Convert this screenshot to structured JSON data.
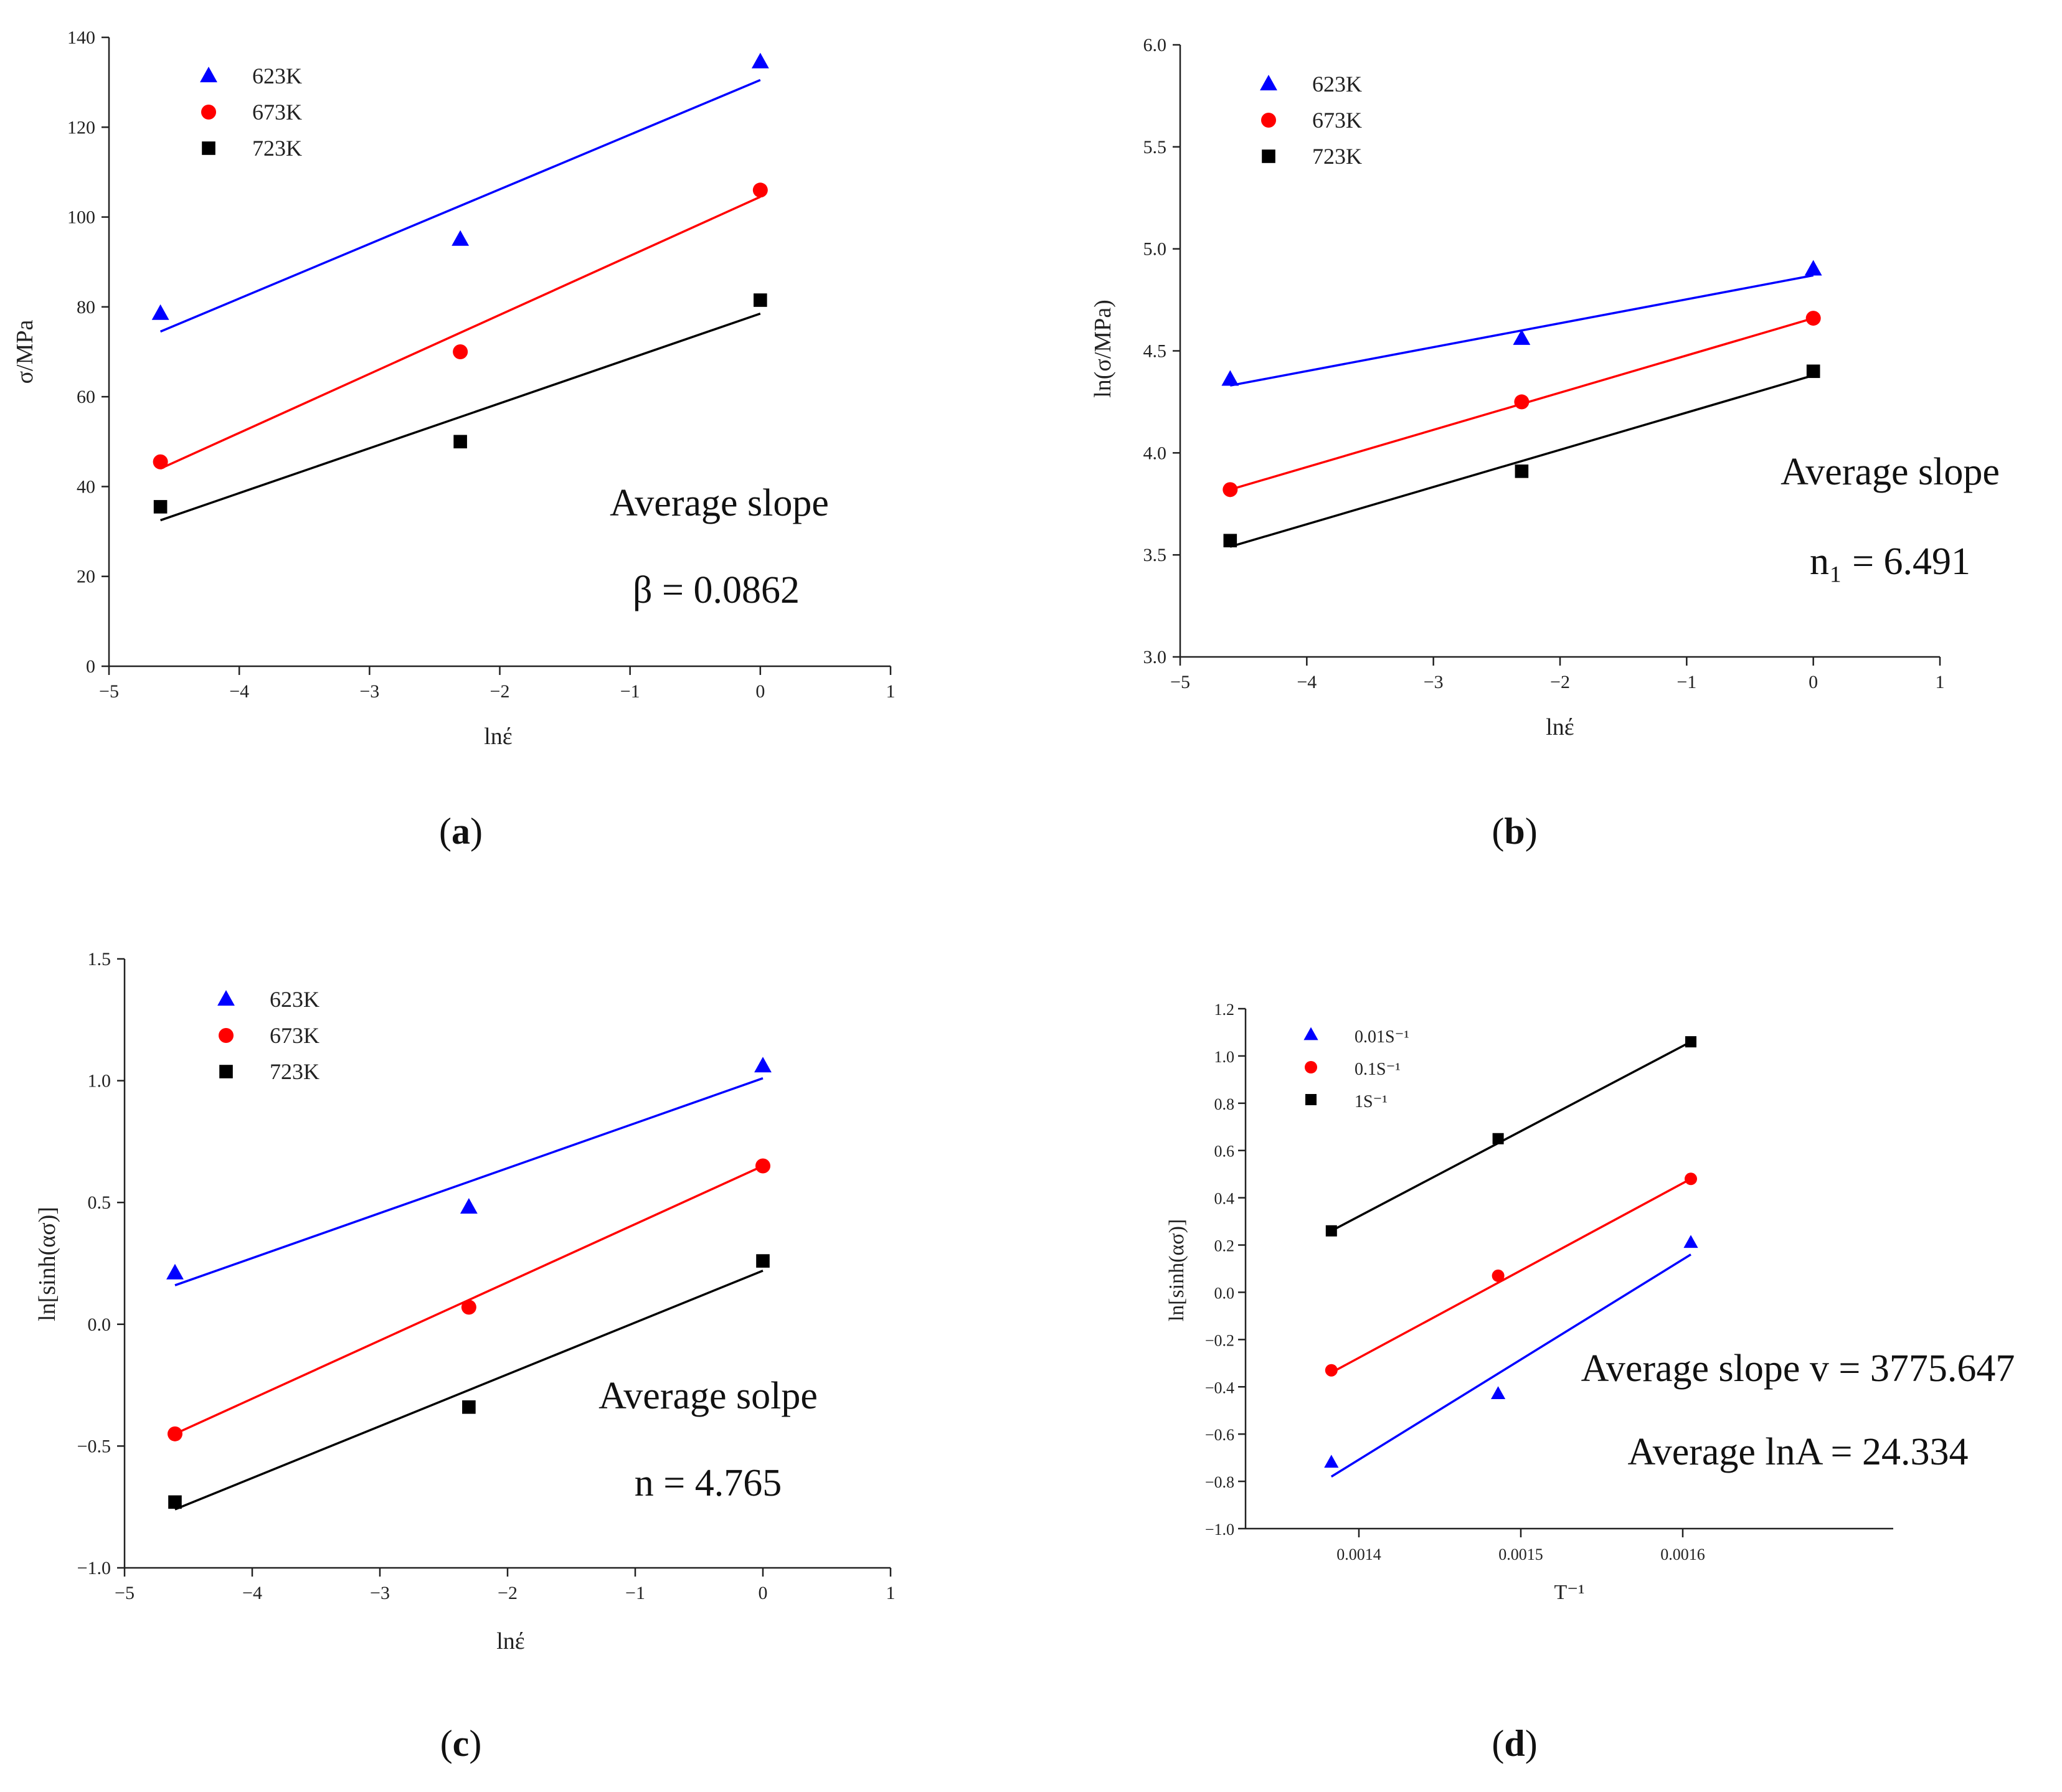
{
  "colors": {
    "623K": "#0000ff",
    "673K": "#ff0000",
    "723K": "#000000"
  },
  "chart_data": [
    {
      "panel": "(a)",
      "panel_letter": "a",
      "type": "scatter",
      "xlabel": "lnέ",
      "ylabel": "σ/MPa",
      "xlim": [
        -5,
        1
      ],
      "ylim": [
        0,
        140
      ],
      "xticks": [
        -5,
        -4,
        -3,
        -2,
        -1,
        0,
        1
      ],
      "yticks": [
        0,
        20,
        40,
        60,
        80,
        100,
        120,
        140
      ],
      "series": [
        {
          "name": "623K",
          "marker": "triangle",
          "color": "#0000ff",
          "x": [
            -4.605,
            -2.303,
            0
          ],
          "y": [
            78.5,
            95,
            134.5
          ],
          "fit": {
            "x": [
              -4.605,
              0
            ],
            "y": [
              74.5,
              130.5
            ]
          }
        },
        {
          "name": "673K",
          "marker": "circle",
          "color": "#ff0000",
          "x": [
            -4.605,
            -2.303,
            0
          ],
          "y": [
            45.5,
            70,
            106
          ],
          "fit": {
            "x": [
              -4.605,
              0
            ],
            "y": [
              44,
              104.5
            ]
          }
        },
        {
          "name": "723K",
          "marker": "square",
          "color": "#000000",
          "x": [
            -4.605,
            -2.303,
            0
          ],
          "y": [
            35.5,
            50,
            81.5
          ],
          "fit": {
            "x": [
              -4.605,
              0
            ],
            "y": [
              32.5,
              78.5
            ]
          }
        }
      ],
      "annotations": [
        {
          "text": "Average slope"
        },
        {
          "text": "β = 0.0862"
        }
      ]
    },
    {
      "panel": "(b)",
      "panel_letter": "b",
      "type": "scatter",
      "xlabel": "lnέ",
      "ylabel": "ln(σ/MPa)",
      "xlim": [
        -5,
        1
      ],
      "ylim": [
        3.0,
        6.0
      ],
      "xticks": [
        -5,
        -4,
        -3,
        -2,
        -1,
        0,
        1
      ],
      "yticks": [
        3.0,
        3.5,
        4.0,
        4.5,
        5.0,
        5.5,
        6.0
      ],
      "series": [
        {
          "name": "623K",
          "marker": "triangle",
          "color": "#0000ff",
          "x": [
            -4.605,
            -2.303,
            0
          ],
          "y": [
            4.36,
            4.56,
            4.9
          ],
          "fit": {
            "x": [
              -4.605,
              0
            ],
            "y": [
              4.33,
              4.87
            ]
          }
        },
        {
          "name": "673K",
          "marker": "circle",
          "color": "#ff0000",
          "x": [
            -4.605,
            -2.303,
            0
          ],
          "y": [
            3.82,
            4.25,
            4.66
          ],
          "fit": {
            "x": [
              -4.605,
              0
            ],
            "y": [
              3.82,
              4.66
            ]
          }
        },
        {
          "name": "723K",
          "marker": "square",
          "color": "#000000",
          "x": [
            -4.605,
            -2.303,
            0
          ],
          "y": [
            3.57,
            3.91,
            4.4
          ],
          "fit": {
            "x": [
              -4.605,
              0
            ],
            "y": [
              3.54,
              4.38
            ]
          }
        }
      ],
      "annotations": [
        {
          "text": "Average slope"
        },
        {
          "text": "n₁ = 6.491"
        }
      ]
    },
    {
      "panel": "(c)",
      "panel_letter": "c",
      "type": "scatter",
      "xlabel": "lnέ",
      "ylabel": "ln[sinh(ασ)]",
      "xlim": [
        -5,
        1
      ],
      "ylim": [
        -1.0,
        1.5
      ],
      "xticks": [
        -5,
        -4,
        -3,
        -2,
        -1,
        0,
        1
      ],
      "yticks": [
        -1.0,
        -0.5,
        0.0,
        0.5,
        1.0,
        1.5
      ],
      "series": [
        {
          "name": "623K",
          "marker": "triangle",
          "color": "#0000ff",
          "x": [
            -4.605,
            -2.303,
            0
          ],
          "y": [
            0.21,
            0.48,
            1.06
          ],
          "fit": {
            "x": [
              -4.605,
              0
            ],
            "y": [
              0.16,
              1.01
            ]
          }
        },
        {
          "name": "673K",
          "marker": "circle",
          "color": "#ff0000",
          "x": [
            -4.605,
            -2.303,
            0
          ],
          "y": [
            -0.45,
            0.07,
            0.65
          ],
          "fit": {
            "x": [
              -4.605,
              0
            ],
            "y": [
              -0.45,
              0.65
            ]
          }
        },
        {
          "name": "723K",
          "marker": "square",
          "color": "#000000",
          "x": [
            -4.605,
            -2.303,
            0
          ],
          "y": [
            -0.73,
            -0.34,
            0.26
          ],
          "fit": {
            "x": [
              -4.605,
              0
            ],
            "y": [
              -0.76,
              0.22
            ]
          }
        }
      ],
      "annotations": [
        {
          "text": "Average solpe"
        },
        {
          "text": "n = 4.765"
        }
      ]
    },
    {
      "panel": "(d)",
      "panel_letter": "d",
      "type": "scatter",
      "xlabel": "T⁻¹",
      "ylabel": "ln[sinh(ασ)]",
      "xlim": [
        0.00133,
        0.00173
      ],
      "ylim": [
        -1.0,
        1.2
      ],
      "xticks": [
        0.0014,
        0.0015,
        0.0016
      ],
      "yticks": [
        -1.0,
        -0.8,
        -0.6,
        -0.4,
        -0.2,
        0.0,
        0.2,
        0.4,
        0.6,
        0.8,
        1.0,
        1.2
      ],
      "series": [
        {
          "name": "0.01S⁻¹",
          "marker": "triangle",
          "color": "#0000ff",
          "x": [
            0.001383,
            0.001486,
            0.001605
          ],
          "y": [
            -0.72,
            -0.43,
            0.21
          ],
          "fit": {
            "x": [
              0.001383,
              0.001605
            ],
            "y": [
              -0.78,
              0.16
            ]
          }
        },
        {
          "name": "0.1S⁻¹",
          "marker": "circle",
          "color": "#ff0000",
          "x": [
            0.001383,
            0.001486,
            0.001605
          ],
          "y": [
            -0.33,
            0.07,
            0.48
          ],
          "fit": {
            "x": [
              0.001383,
              0.001605
            ],
            "y": [
              -0.34,
              0.48
            ]
          }
        },
        {
          "name": "1S⁻¹",
          "marker": "square",
          "color": "#000000",
          "x": [
            0.001383,
            0.001486,
            0.001605
          ],
          "y": [
            0.26,
            0.65,
            1.06
          ],
          "fit": {
            "x": [
              0.001383,
              0.001605
            ],
            "y": [
              0.26,
              1.06
            ]
          }
        }
      ],
      "annotations": [
        {
          "text": "Average slope v = 3775.647"
        },
        {
          "text": "Average lnA = 24.334"
        }
      ]
    }
  ]
}
